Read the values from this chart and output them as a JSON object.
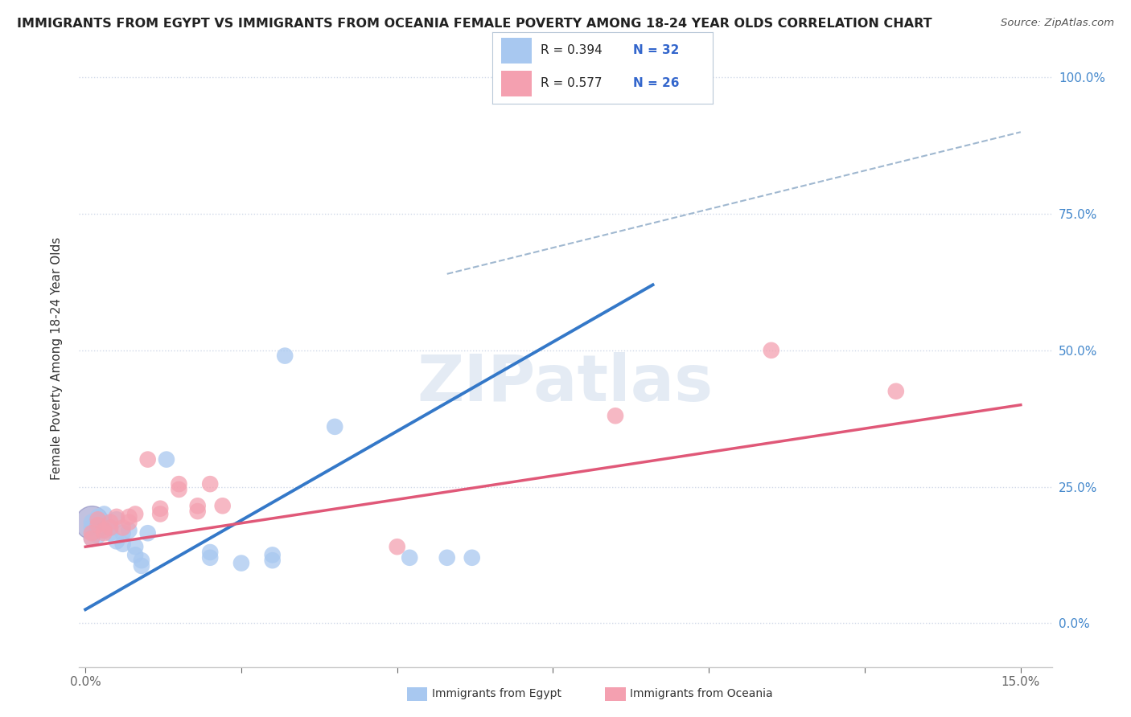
{
  "title": "IMMIGRANTS FROM EGYPT VS IMMIGRANTS FROM OCEANIA FEMALE POVERTY AMONG 18-24 YEAR OLDS CORRELATION CHART",
  "source": "Source: ZipAtlas.com",
  "ylabel": "Female Poverty Among 18-24 Year Olds",
  "xlim": [
    -0.001,
    0.155
  ],
  "ylim": [
    -0.08,
    1.05
  ],
  "legend_egypt_R": "R = 0.394",
  "legend_egypt_N": "N = 32",
  "legend_oceania_R": "R = 0.577",
  "legend_oceania_N": "N = 26",
  "egypt_color": "#a8c8f0",
  "oceania_color": "#f4a0b0",
  "egypt_line_color": "#3478c8",
  "oceania_line_color": "#e05878",
  "egypt_line": [
    [
      0.0,
      0.025
    ],
    [
      0.091,
      0.62
    ]
  ],
  "oceania_line": [
    [
      0.0,
      0.14
    ],
    [
      0.15,
      0.4
    ]
  ],
  "dashed_line": [
    [
      0.058,
      0.64
    ],
    [
      0.15,
      0.9
    ]
  ],
  "egypt_scatter": [
    [
      0.001,
      0.185
    ],
    [
      0.001,
      0.155
    ],
    [
      0.001,
      0.175
    ],
    [
      0.002,
      0.195
    ],
    [
      0.002,
      0.16
    ],
    [
      0.002,
      0.175
    ],
    [
      0.003,
      0.185
    ],
    [
      0.003,
      0.17
    ],
    [
      0.003,
      0.2
    ],
    [
      0.004,
      0.165
    ],
    [
      0.004,
      0.175
    ],
    [
      0.005,
      0.19
    ],
    [
      0.005,
      0.15
    ],
    [
      0.006,
      0.165
    ],
    [
      0.006,
      0.145
    ],
    [
      0.007,
      0.17
    ],
    [
      0.008,
      0.14
    ],
    [
      0.008,
      0.125
    ],
    [
      0.009,
      0.115
    ],
    [
      0.009,
      0.105
    ],
    [
      0.01,
      0.165
    ],
    [
      0.013,
      0.3
    ],
    [
      0.02,
      0.13
    ],
    [
      0.02,
      0.12
    ],
    [
      0.025,
      0.11
    ],
    [
      0.03,
      0.125
    ],
    [
      0.03,
      0.115
    ],
    [
      0.032,
      0.49
    ],
    [
      0.04,
      0.36
    ],
    [
      0.052,
      0.12
    ],
    [
      0.058,
      0.12
    ],
    [
      0.062,
      0.12
    ]
  ],
  "oceania_scatter": [
    [
      0.001,
      0.165
    ],
    [
      0.001,
      0.155
    ],
    [
      0.002,
      0.18
    ],
    [
      0.002,
      0.19
    ],
    [
      0.003,
      0.17
    ],
    [
      0.003,
      0.165
    ],
    [
      0.004,
      0.185
    ],
    [
      0.004,
      0.175
    ],
    [
      0.005,
      0.195
    ],
    [
      0.006,
      0.175
    ],
    [
      0.007,
      0.195
    ],
    [
      0.007,
      0.185
    ],
    [
      0.008,
      0.2
    ],
    [
      0.01,
      0.3
    ],
    [
      0.012,
      0.21
    ],
    [
      0.012,
      0.2
    ],
    [
      0.015,
      0.255
    ],
    [
      0.015,
      0.245
    ],
    [
      0.018,
      0.215
    ],
    [
      0.018,
      0.205
    ],
    [
      0.02,
      0.255
    ],
    [
      0.022,
      0.215
    ],
    [
      0.05,
      0.14
    ],
    [
      0.085,
      0.38
    ],
    [
      0.11,
      0.5
    ],
    [
      0.13,
      0.425
    ]
  ],
  "large_egypt_dot": [
    0.001,
    0.2
  ],
  "watermark": "ZIPatlas",
  "background_color": "#ffffff",
  "grid_color": "#d0d8e8",
  "grid_style": ":"
}
